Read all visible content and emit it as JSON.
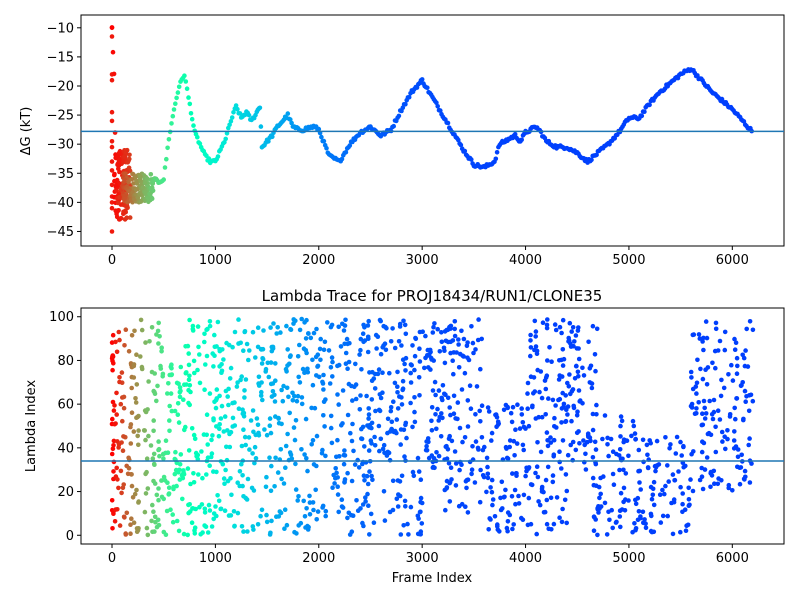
{
  "chart_data": [
    {
      "type": "scatter",
      "title": "",
      "xlabel": "",
      "ylabel": "ΔG (kT)",
      "xlim": [
        -300,
        6500
      ],
      "ylim": [
        -47.5,
        -7.8
      ],
      "xticks": [
        0,
        1000,
        2000,
        3000,
        4000,
        5000,
        6000
      ],
      "yticks": [
        -10,
        -15,
        -20,
        -25,
        -30,
        -35,
        -40,
        -45
      ],
      "colormap": "rainbow",
      "reference_line": {
        "y": -27.8,
        "color": "#1f77b4"
      },
      "series": [
        {
          "trace": [
            [
              0,
              -10
            ],
            [
              20,
              -18
            ],
            [
              40,
              -38
            ],
            [
              60,
              -40
            ],
            [
              100,
              -37
            ],
            [
              150,
              -38
            ],
            [
              200,
              -38.5
            ],
            [
              250,
              -39
            ],
            [
              300,
              -37.5
            ],
            [
              350,
              -39.5
            ],
            [
              400,
              -36
            ],
            [
              450,
              -36.5
            ],
            [
              500,
              -36
            ],
            [
              550,
              -29
            ],
            [
              600,
              -24
            ],
            [
              650,
              -20
            ],
            [
              700,
              -18
            ],
            [
              740,
              -22
            ],
            [
              800,
              -28
            ],
            [
              850,
              -30
            ],
            [
              900,
              -32
            ],
            [
              950,
              -33
            ],
            [
              1000,
              -33
            ],
            [
              1050,
              -31
            ],
            [
              1100,
              -29
            ],
            [
              1150,
              -26
            ],
            [
              1200,
              -23.5
            ],
            [
              1250,
              -25.5
            ],
            [
              1300,
              -24.5
            ],
            [
              1350,
              -26
            ],
            [
              1400,
              -24.5
            ],
            [
              1430,
              -23.5
            ],
            [
              1450,
              -30.5
            ],
            [
              1500,
              -29.5
            ],
            [
              1550,
              -28.5
            ],
            [
              1600,
              -27
            ],
            [
              1650,
              -26
            ],
            [
              1700,
              -25
            ],
            [
              1750,
              -27
            ],
            [
              1800,
              -27.5
            ],
            [
              1850,
              -27.5
            ],
            [
              1900,
              -27.2
            ],
            [
              1950,
              -27
            ],
            [
              2000,
              -27.5
            ],
            [
              2100,
              -32
            ],
            [
              2200,
              -33
            ],
            [
              2300,
              -30
            ],
            [
              2400,
              -28
            ],
            [
              2500,
              -27
            ],
            [
              2600,
              -28.5
            ],
            [
              2700,
              -27.5
            ],
            [
              2800,
              -24
            ],
            [
              2900,
              -21
            ],
            [
              3000,
              -19
            ],
            [
              3100,
              -22
            ],
            [
              3200,
              -25
            ],
            [
              3300,
              -28
            ],
            [
              3400,
              -31
            ],
            [
              3500,
              -33.5
            ],
            [
              3600,
              -34
            ],
            [
              3700,
              -33
            ],
            [
              3750,
              -30
            ],
            [
              3800,
              -29.5
            ],
            [
              3850,
              -29
            ],
            [
              3900,
              -28.5
            ],
            [
              3950,
              -29.5
            ],
            [
              4000,
              -28
            ],
            [
              4050,
              -27.5
            ],
            [
              4100,
              -27
            ],
            [
              4150,
              -28
            ],
            [
              4200,
              -29.5
            ],
            [
              4300,
              -30.5
            ],
            [
              4400,
              -30.5
            ],
            [
              4500,
              -31.5
            ],
            [
              4600,
              -33
            ],
            [
              4700,
              -31.5
            ],
            [
              4800,
              -30
            ],
            [
              4900,
              -28
            ],
            [
              5000,
              -25.5
            ],
            [
              5100,
              -25.5
            ],
            [
              5200,
              -23
            ],
            [
              5300,
              -21
            ],
            [
              5400,
              -19.5
            ],
            [
              5500,
              -18
            ],
            [
              5600,
              -17
            ],
            [
              5700,
              -19
            ],
            [
              5800,
              -21
            ],
            [
              5900,
              -22.5
            ],
            [
              6000,
              -24
            ],
            [
              6100,
              -26
            ],
            [
              6200,
              -28
            ]
          ]
        }
      ]
    },
    {
      "type": "scatter",
      "title": "Lambda Trace for PROJ18434/RUN1/CLONE35",
      "xlabel": "Frame Index",
      "ylabel": "Lambda Index",
      "xlim": [
        -300,
        6500
      ],
      "ylim": [
        -4,
        104
      ],
      "xticks": [
        0,
        1000,
        2000,
        3000,
        4000,
        5000,
        6000
      ],
      "yticks": [
        0,
        20,
        40,
        60,
        80,
        100
      ],
      "colormap": "rainbow",
      "reference_line": {
        "y": 34,
        "color": "#1f77b4"
      },
      "series": [
        {
          "bands": [
            {
              "x": [
                0,
                20
              ],
              "y": [
                3,
                95
              ]
            },
            {
              "x": [
                20,
                200
              ],
              "y": [
                0,
                97
              ]
            },
            {
              "x": [
                200,
                500
              ],
              "y": [
                0,
                99
              ]
            },
            {
              "x": [
                500,
                700
              ],
              "y": [
                0,
                85
              ]
            },
            {
              "x": [
                700,
                1000
              ],
              "y": [
                0,
                99
              ]
            },
            {
              "x": [
                1000,
                1500
              ],
              "y": [
                0,
                99
              ]
            },
            {
              "x": [
                1500,
                2000
              ],
              "y": [
                0,
                99
              ]
            },
            {
              "x": [
                2000,
                2500
              ],
              "y": [
                0,
                99
              ]
            },
            {
              "x": [
                2500,
                3000
              ],
              "y": [
                0,
                99
              ]
            },
            {
              "x": [
                3000,
                3200
              ],
              "y": [
                30,
                99
              ]
            },
            {
              "x": [
                3200,
                3600
              ],
              "y": [
                10,
                99
              ]
            },
            {
              "x": [
                3600,
                4000
              ],
              "y": [
                0,
                60
              ]
            },
            {
              "x": [
                4000,
                4400
              ],
              "y": [
                0,
                99
              ]
            },
            {
              "x": [
                4400,
                4700
              ],
              "y": [
                30,
                99
              ]
            },
            {
              "x": [
                4650,
                5100
              ],
              "y": [
                0,
                55
              ]
            },
            {
              "x": [
                5100,
                5600
              ],
              "y": [
                0,
                45
              ]
            },
            {
              "x": [
                5600,
                6200
              ],
              "y": [
                20,
                99
              ]
            }
          ]
        }
      ]
    }
  ]
}
